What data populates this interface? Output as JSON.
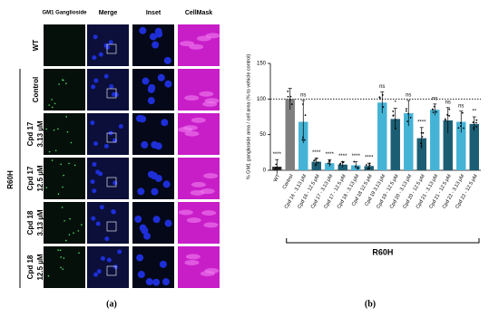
{
  "panel_a": {
    "columns": [
      "GM1 Ganglioside",
      "Merge",
      "Inset",
      "CellMask"
    ],
    "rows": [
      [
        "WT"
      ],
      [
        "Control"
      ],
      [
        "Cpd 17",
        "3.13 µM"
      ],
      [
        "Cpd 17",
        "12.5 µM"
      ],
      [
        "Cpd 18",
        "3.13 µM"
      ],
      [
        "Cpd 18",
        "12.5 µM"
      ]
    ],
    "group": "R60H",
    "label": "(a)"
  },
  "chart_data": {
    "type": "bar",
    "y_label": "% GM1 ganglioside area / cell area (% to vehicle control)",
    "categories": [
      "WT",
      "Control",
      "Cpd 16 - 3.13 µM",
      "Cpd 16 - 12.5 µM",
      "Cpd 17 - 3.13 µM",
      "Cpd 17 - 12.5 µM",
      "Cpd 18 - 3.13 µM",
      "Cpd 18 12.5 µM",
      "Cpd 19 3.13 µM",
      "Cpd 19 - 12.5 µM",
      "Cpd 20 - 3.13 µM",
      "Cpd 20 - 12.5 µM",
      "Cpd 21 - 3.13 µM",
      "Cpd 21 - 12.5 µM",
      "Cpd 22 - 3.13 µM",
      "Cpd 22 - 12.5 µM"
    ],
    "values": [
      5,
      100,
      68,
      12,
      10,
      8,
      7,
      6,
      95,
      72,
      80,
      45,
      85,
      70,
      68,
      65
    ],
    "errors": [
      10,
      15,
      30,
      5,
      5,
      4,
      5,
      4,
      15,
      15,
      18,
      15,
      8,
      18,
      15,
      10
    ],
    "colors": [
      "#333333",
      "#7f7f7f",
      "#45b3d6",
      "#1b5e74",
      "#45b3d6",
      "#1b5e74",
      "#45b3d6",
      "#1b5e74",
      "#45b3d6",
      "#1b5e74",
      "#45b3d6",
      "#1b5e74",
      "#45b3d6",
      "#1b5e74",
      "#45b3d6",
      "#1b5e74"
    ],
    "annotations": [
      "****",
      null,
      "ns",
      "****",
      "****",
      "****",
      "****",
      "****",
      "ns",
      "*",
      "ns",
      "****",
      "ns",
      "ns",
      "ns",
      "**"
    ],
    "reference_line": 100,
    "ylim": [
      0,
      150
    ],
    "yticks": [
      0,
      50,
      100,
      150
    ],
    "group_label": "R60H",
    "panel_label": "(b)"
  }
}
